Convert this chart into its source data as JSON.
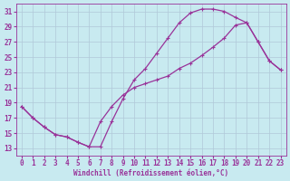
{
  "xlabel": "Windchill (Refroidissement éolien,°C)",
  "bg_color": "#c8eaf0",
  "line_color": "#993399",
  "grid_color": "#b0c8d8",
  "line1_x": [
    0,
    1,
    2,
    3,
    4,
    5,
    6,
    7,
    8,
    9,
    10,
    11,
    12,
    13,
    14,
    15,
    16,
    17,
    18,
    19,
    20,
    21,
    22,
    23
  ],
  "line1_y": [
    18.5,
    17.0,
    15.8,
    14.8,
    14.5,
    13.8,
    13.2,
    13.2,
    16.5,
    19.5,
    22.0,
    23.5,
    25.5,
    27.5,
    29.5,
    30.8,
    31.3,
    31.3,
    31.0,
    30.2,
    29.5,
    27.0,
    24.5,
    23.3
  ],
  "line2_x": [
    0,
    1,
    2,
    3,
    4,
    5,
    6,
    7,
    8,
    9,
    10,
    11,
    12,
    13,
    14,
    15,
    16,
    17,
    18,
    19,
    20,
    21,
    22,
    23
  ],
  "line2_y": [
    18.5,
    17.0,
    15.8,
    14.8,
    14.5,
    13.8,
    13.2,
    16.5,
    18.5,
    20.0,
    21.0,
    21.5,
    22.0,
    22.5,
    23.5,
    24.2,
    25.2,
    26.3,
    27.5,
    29.2,
    29.5,
    27.0,
    24.5,
    23.3
  ],
  "xlim": [
    -0.5,
    23.5
  ],
  "ylim": [
    12,
    32
  ],
  "yticks": [
    13,
    15,
    17,
    19,
    21,
    23,
    25,
    27,
    29,
    31
  ],
  "xticks": [
    0,
    1,
    2,
    3,
    4,
    5,
    6,
    7,
    8,
    9,
    10,
    11,
    12,
    13,
    14,
    15,
    16,
    17,
    18,
    19,
    20,
    21,
    22,
    23
  ],
  "tick_fontsize": 5.5,
  "label_fontsize": 5.5,
  "linewidth": 0.9,
  "markersize": 3.5
}
